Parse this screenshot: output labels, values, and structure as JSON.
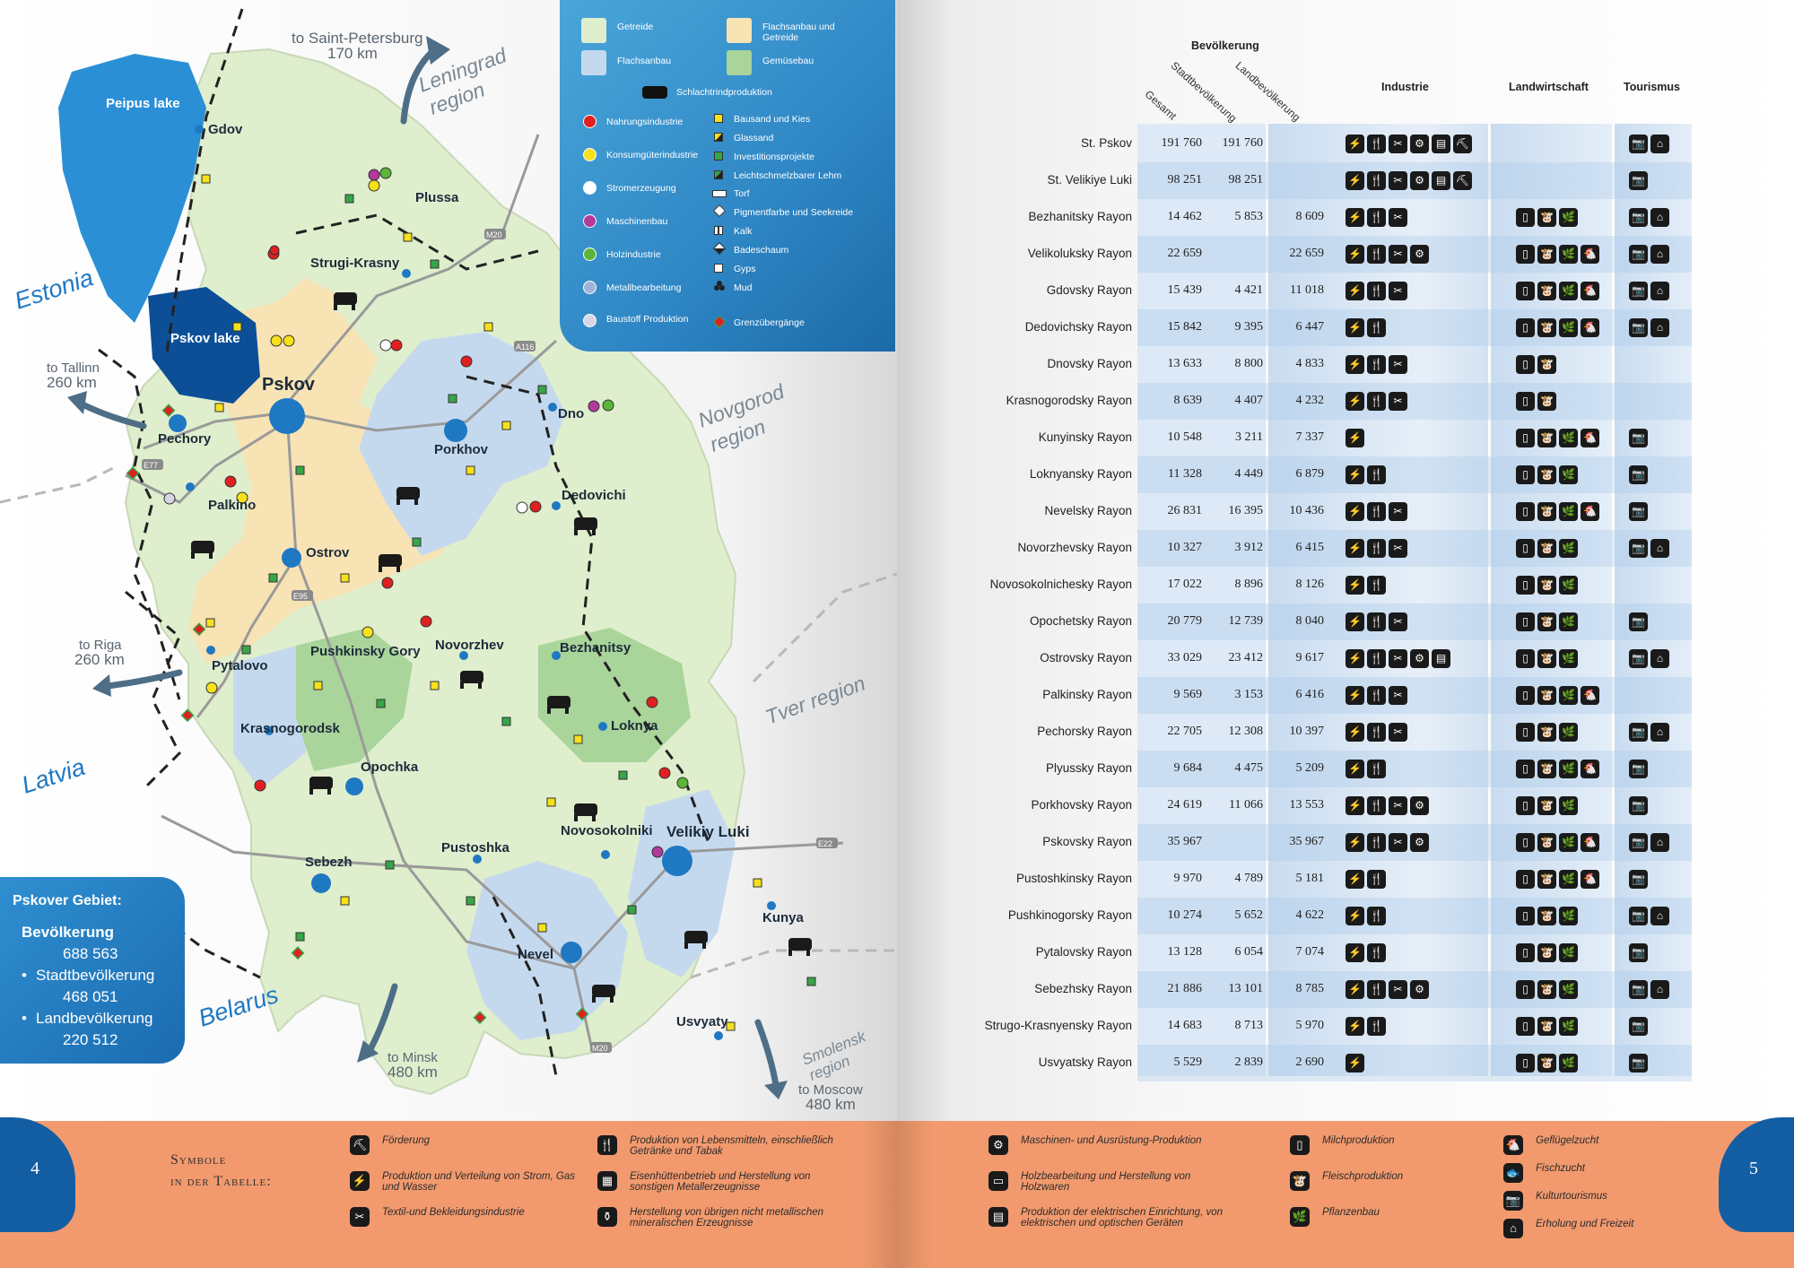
{
  "legend": {
    "areas": [
      "Getreide",
      "Flachsanbau und Getreide",
      "Flachsanbau",
      "Gemüsebau"
    ],
    "cattle": "Schlachtrindproduktion",
    "circles": [
      {
        "label": "Nahrungsindustrie",
        "color": "#e02020"
      },
      {
        "label": "Konsumgüterindustrie",
        "color": "#f6e11a"
      },
      {
        "label": "Stromerzeugung",
        "color": "#ffffff"
      },
      {
        "label": "Maschinenbau",
        "color": "#b23a9a"
      },
      {
        "label": "Holzindustrie",
        "color": "#5cb53a"
      },
      {
        "label": "Metallbearbeitung",
        "color": "#9fb4d6"
      },
      {
        "label": "Baustoff Produktion",
        "color": "#d8d6e4"
      }
    ],
    "minerals": [
      "Bausand und Kies",
      "Glassand",
      "Investitionsprojekte",
      "Leichtschmelzbarer Lehm",
      "Torf",
      "Pigmentfarbe und Seekreide",
      "Kalk",
      "Badeschaum",
      "Gyps",
      "Mud",
      "Grenzübergänge"
    ]
  },
  "map": {
    "lakes": [
      "Peipus lake",
      "Pskov lake"
    ],
    "countries": [
      "Estonia",
      "Latvia",
      "Belarus"
    ],
    "regions": [
      "Leningrad",
      "region",
      "Novgorod",
      "region",
      "Tver region",
      "Smolensk",
      "region"
    ],
    "directions": [
      {
        "to": "to Saint-Petersburg",
        "dist": "170 km"
      },
      {
        "to": "to Tallinn",
        "dist": "260 km"
      },
      {
        "to": "to Riga",
        "dist": "260 km"
      },
      {
        "to": "to Minsk",
        "dist": "480 km"
      },
      {
        "to": "to Moscow",
        "dist": "480 km"
      }
    ],
    "cities": [
      "Gdov",
      "Plussa",
      "Strugi-Krasny",
      "Pskov",
      "Pechory",
      "Porkhov",
      "Dno",
      "Dedovichi",
      "Palkino",
      "Ostrov",
      "Pytalovo",
      "Pushkinsky Gory",
      "Novorzhev",
      "Bezhanitsy",
      "Krasnogorodsk",
      "Opochka",
      "Loknya",
      "Sebezh",
      "Pustoshka",
      "Novosokolniki",
      "Velikiy Luki",
      "Nevel",
      "Kunya",
      "Usvyaty"
    ],
    "roads": [
      "M20",
      "A116",
      "E77",
      "E95",
      "E22",
      "M20"
    ]
  },
  "summary": {
    "title": "Pskover Gebiet:",
    "pop_label": "Bevölkerung",
    "pop_value": "688 563",
    "urban_label": "Stadtbevölkerung",
    "urban_value": "468 051",
    "rural_label": "Landbevölkerung",
    "rural_value": "220 512"
  },
  "table": {
    "group_header": "Bevölkerung",
    "col_total": "Gesamt",
    "col_urban": "Stadtbevölkerung",
    "col_rural": "Landbevölkerung",
    "col_industry": "Industrie",
    "col_agri": "Landwirtschaft",
    "col_tourism": "Tourismus",
    "rows": [
      {
        "name": "St. Pskov",
        "total": "191 760",
        "urban": "191 760",
        "rural": "",
        "ind": 6,
        "agr": 0,
        "tour": 2
      },
      {
        "name": "St. Velikiye Luki",
        "total": "98 251",
        "urban": "98 251",
        "rural": "",
        "ind": 6,
        "agr": 0,
        "tour": 1
      },
      {
        "name": "Bezhanitsky Rayon",
        "total": "14 462",
        "urban": "5 853",
        "rural": "8 609",
        "ind": 3,
        "agr": 3,
        "tour": 2
      },
      {
        "name": "Velikoluksky Rayon",
        "total": "22 659",
        "urban": "",
        "rural": "22 659",
        "ind": 4,
        "agr": 4,
        "tour": 2
      },
      {
        "name": "Gdovsky Rayon",
        "total": "15 439",
        "urban": "4 421",
        "rural": "11 018",
        "ind": 3,
        "agr": 4,
        "tour": 2
      },
      {
        "name": "Dedovichsky Rayon",
        "total": "15 842",
        "urban": "9 395",
        "rural": "6 447",
        "ind": 2,
        "agr": 4,
        "tour": 2
      },
      {
        "name": "Dnovsky Rayon",
        "total": "13 633",
        "urban": "8 800",
        "rural": "4 833",
        "ind": 3,
        "agr": 2,
        "tour": 0
      },
      {
        "name": "Krasnogorodsky Rayon",
        "total": "8 639",
        "urban": "4 407",
        "rural": "4 232",
        "ind": 3,
        "agr": 2,
        "tour": 0
      },
      {
        "name": "Kunyinsky Rayon",
        "total": "10 548",
        "urban": "3 211",
        "rural": "7 337",
        "ind": 1,
        "agr": 4,
        "tour": 1
      },
      {
        "name": "Loknyansky Rayon",
        "total": "11 328",
        "urban": "4 449",
        "rural": "6 879",
        "ind": 2,
        "agr": 3,
        "tour": 1
      },
      {
        "name": "Nevelsky Rayon",
        "total": "26 831",
        "urban": "16 395",
        "rural": "10 436",
        "ind": 3,
        "agr": 4,
        "tour": 1
      },
      {
        "name": "Novorzhevsky Rayon",
        "total": "10 327",
        "urban": "3 912",
        "rural": "6 415",
        "ind": 3,
        "agr": 3,
        "tour": 2
      },
      {
        "name": "Novosokolnichesky Rayon",
        "total": "17 022",
        "urban": "8 896",
        "rural": "8 126",
        "ind": 2,
        "agr": 3,
        "tour": 0
      },
      {
        "name": "Opochetsky Rayon",
        "total": "20 779",
        "urban": "12 739",
        "rural": "8 040",
        "ind": 3,
        "agr": 3,
        "tour": 1
      },
      {
        "name": "Ostrovsky Rayon",
        "total": "33 029",
        "urban": "23 412",
        "rural": "9 617",
        "ind": 5,
        "agr": 3,
        "tour": 2
      },
      {
        "name": "Palkinsky Rayon",
        "total": "9 569",
        "urban": "3 153",
        "rural": "6 416",
        "ind": 3,
        "agr": 4,
        "tour": 0
      },
      {
        "name": "Pechorsky Rayon",
        "total": "22 705",
        "urban": "12 308",
        "rural": "10 397",
        "ind": 3,
        "agr": 3,
        "tour": 2
      },
      {
        "name": "Plyussky Rayon",
        "total": "9 684",
        "urban": "4 475",
        "rural": "5 209",
        "ind": 2,
        "agr": 4,
        "tour": 1
      },
      {
        "name": "Porkhovsky Rayon",
        "total": "24 619",
        "urban": "11 066",
        "rural": "13 553",
        "ind": 4,
        "agr": 3,
        "tour": 1
      },
      {
        "name": "Pskovsky Rayon",
        "total": "35 967",
        "urban": "",
        "rural": "35 967",
        "ind": 4,
        "agr": 4,
        "tour": 2
      },
      {
        "name": "Pustoshkinsky Rayon",
        "total": "9 970",
        "urban": "4 789",
        "rural": "5 181",
        "ind": 2,
        "agr": 4,
        "tour": 1
      },
      {
        "name": "Pushkinogorsky Rayon",
        "total": "10 274",
        "urban": "5 652",
        "rural": "4 622",
        "ind": 2,
        "agr": 3,
        "tour": 2
      },
      {
        "name": "Pytalovsky Rayon",
        "total": "13 128",
        "urban": "6 054",
        "rural": "7 074",
        "ind": 2,
        "agr": 3,
        "tour": 1
      },
      {
        "name": "Sebezhsky Rayon",
        "total": "21 886",
        "urban": "13 101",
        "rural": "8 785",
        "ind": 4,
        "agr": 3,
        "tour": 2
      },
      {
        "name": "Strugo-Krasnyensky Rayon",
        "total": "14 683",
        "urban": "8 713",
        "rural": "5 970",
        "ind": 2,
        "agr": 3,
        "tour": 1
      },
      {
        "name": "Usvyatsky Rayon",
        "total": "5 529",
        "urban": "2 839",
        "rural": "2 690",
        "ind": 1,
        "agr": 3,
        "tour": 1
      }
    ]
  },
  "symbols": {
    "heading_1": "Symbole",
    "heading_2": "in der Tabelle:",
    "items": [
      {
        "icon": "mining-icon",
        "glyph": "⛏",
        "text": "Förderung"
      },
      {
        "icon": "power-icon",
        "glyph": "⚡",
        "text": "Produktion und Verteilung von Strom, Gas und Wasser"
      },
      {
        "icon": "textile-icon",
        "glyph": "✂",
        "text": "Textil-und Bekleidungsindustrie"
      },
      {
        "icon": "food-icon",
        "glyph": "🍴",
        "text": "Produktion von Lebensmitteln, einschließlich Getränke und Tabak"
      },
      {
        "icon": "metallurgy-icon",
        "glyph": "▦",
        "text": "Eisenhüttenbetrieb und Herstellung von sonstigen Metallerzeugnisse"
      },
      {
        "icon": "mineral-icon",
        "glyph": "⚱",
        "text": "Herstellung von übrigen nicht metallischen mineralischen Erzeugnisse"
      },
      {
        "icon": "machinery-icon",
        "glyph": "⚙",
        "text": "Maschinen- und Ausrüstung-Produktion"
      },
      {
        "icon": "wood-icon",
        "glyph": "▭",
        "text": "Holzbearbeitung und Herstellung von Holzwaren"
      },
      {
        "icon": "electronics-icon",
        "glyph": "▤",
        "text": "Produktion der elektrischen Einrichtung, von elektrischen und optischen Geräten"
      },
      {
        "icon": "milk-icon",
        "glyph": "▯",
        "text": "Milchproduktion"
      },
      {
        "icon": "meat-icon",
        "glyph": "🐮",
        "text": "Fleischproduktion"
      },
      {
        "icon": "plant-icon",
        "glyph": "🌿",
        "text": "Pflanzenbau"
      },
      {
        "icon": "poultry-icon",
        "glyph": "🐔",
        "text": "Geflügelzucht"
      },
      {
        "icon": "fish-icon",
        "glyph": "🐟",
        "text": "Fischzucht"
      },
      {
        "icon": "camera-icon",
        "glyph": "📷",
        "text": "Kulturtourismus"
      },
      {
        "icon": "home-icon",
        "glyph": "⌂",
        "text": "Erholung und Freizeit"
      }
    ]
  },
  "pages": {
    "left": "4",
    "right": "5"
  },
  "colors": {
    "accent": "#1b6bb0",
    "band": "#f29a6e",
    "table_col": "#c9dcf0"
  }
}
